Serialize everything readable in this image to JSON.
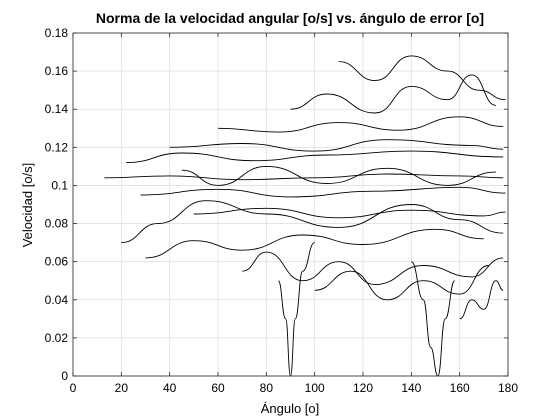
{
  "chart_data": {
    "type": "line",
    "title": "Norma de la velocidad angular [o/s] vs. ángulo de error [o]",
    "xlabel": "Ángulo [o]",
    "ylabel": "Velocidad [o/s]",
    "xlim": [
      0,
      180
    ],
    "ylim": [
      0,
      0.18
    ],
    "xticks": [
      0,
      20,
      40,
      60,
      80,
      100,
      120,
      140,
      160,
      180
    ],
    "yticks": [
      0,
      0.02,
      0.04,
      0.06,
      0.08,
      0.1,
      0.12,
      0.14,
      0.16,
      0.18
    ],
    "xtick_labels": [
      "0",
      "20",
      "40",
      "60",
      "80",
      "100",
      "120",
      "140",
      "160",
      "180"
    ],
    "ytick_labels": [
      "0",
      "0.02",
      "0.04",
      "0.06",
      "0.08",
      "0.1",
      "0.12",
      "0.14",
      "0.16",
      "0.18"
    ],
    "grid": true,
    "series_color": "#000000",
    "series": [
      {
        "x": [
          13,
          40,
          70,
          100,
          130,
          160,
          178
        ],
        "y": [
          0.104,
          0.105,
          0.103,
          0.104,
          0.106,
          0.105,
          0.104
        ]
      },
      {
        "x": [
          22,
          45,
          75,
          105,
          140,
          178
        ],
        "y": [
          0.112,
          0.117,
          0.113,
          0.116,
          0.118,
          0.115
        ]
      },
      {
        "x": [
          28,
          60,
          90,
          125,
          160,
          179
        ],
        "y": [
          0.095,
          0.098,
          0.094,
          0.097,
          0.099,
          0.096
        ]
      },
      {
        "x": [
          40,
          70,
          100,
          130,
          165,
          178
        ],
        "y": [
          0.12,
          0.122,
          0.118,
          0.124,
          0.121,
          0.119
        ]
      },
      {
        "x": [
          50,
          80,
          110,
          140,
          170,
          179
        ],
        "y": [
          0.085,
          0.088,
          0.083,
          0.087,
          0.084,
          0.086
        ]
      },
      {
        "x": [
          20,
          35,
          55,
          80,
          110,
          140,
          160,
          178
        ],
        "y": [
          0.07,
          0.08,
          0.092,
          0.085,
          0.078,
          0.09,
          0.082,
          0.075
        ]
      },
      {
        "x": [
          30,
          50,
          70,
          95,
          120,
          150,
          170
        ],
        "y": [
          0.062,
          0.071,
          0.066,
          0.074,
          0.069,
          0.077,
          0.072
        ]
      },
      {
        "x": [
          60,
          85,
          110,
          135,
          160,
          178
        ],
        "y": [
          0.13,
          0.128,
          0.133,
          0.129,
          0.136,
          0.131
        ]
      },
      {
        "x": [
          85,
          88,
          90,
          92,
          95,
          100
        ],
        "y": [
          0.05,
          0.03,
          0.0,
          0.03,
          0.055,
          0.07
        ]
      },
      {
        "x": [
          140,
          145,
          148,
          151,
          154,
          158
        ],
        "y": [
          0.06,
          0.04,
          0.015,
          0.0,
          0.03,
          0.05
        ]
      },
      {
        "x": [
          90,
          105,
          125,
          140,
          155,
          165,
          175
        ],
        "y": [
          0.14,
          0.148,
          0.138,
          0.152,
          0.145,
          0.158,
          0.142
        ]
      },
      {
        "x": [
          100,
          115,
          130,
          145,
          160,
          172
        ],
        "y": [
          0.045,
          0.055,
          0.04,
          0.05,
          0.043,
          0.058
        ]
      },
      {
        "x": [
          70,
          80,
          95,
          110,
          125,
          145,
          165,
          178
        ],
        "y": [
          0.055,
          0.065,
          0.05,
          0.06,
          0.048,
          0.058,
          0.052,
          0.062
        ]
      },
      {
        "x": [
          110,
          125,
          140,
          155,
          168,
          179
        ],
        "y": [
          0.165,
          0.155,
          0.168,
          0.16,
          0.15,
          0.145
        ]
      },
      {
        "x": [
          45,
          60,
          80,
          105,
          130,
          155,
          175
        ],
        "y": [
          0.108,
          0.1,
          0.11,
          0.101,
          0.109,
          0.1,
          0.107
        ]
      },
      {
        "x": [
          160,
          165,
          170,
          175,
          178
        ],
        "y": [
          0.03,
          0.04,
          0.035,
          0.05,
          0.045
        ]
      }
    ]
  }
}
